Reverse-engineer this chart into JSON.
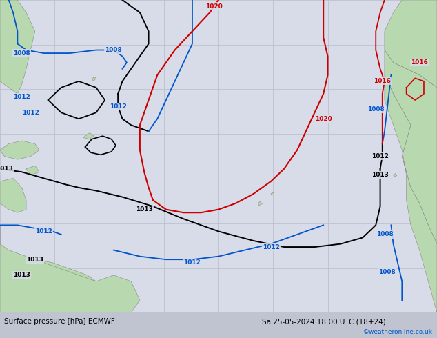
{
  "title_left": "Surface pressure [hPa] ECMWF",
  "title_right": "Sa 25-05-2024 18:00 UTC (18+24)",
  "copyright": "©weatheronline.co.uk",
  "bg_color": "#c8ccd8",
  "land_color": "#b8d8b0",
  "ocean_color": "#d8dce8",
  "grid_color": "#b8bcc8",
  "fig_width": 6.34,
  "fig_height": 4.9,
  "dpi": 100,
  "bottom_bar_color": "#c0c4d0",
  "black": "#000000",
  "blue": "#0055cc",
  "red": "#cc0000",
  "dark_red": "#cc0000"
}
